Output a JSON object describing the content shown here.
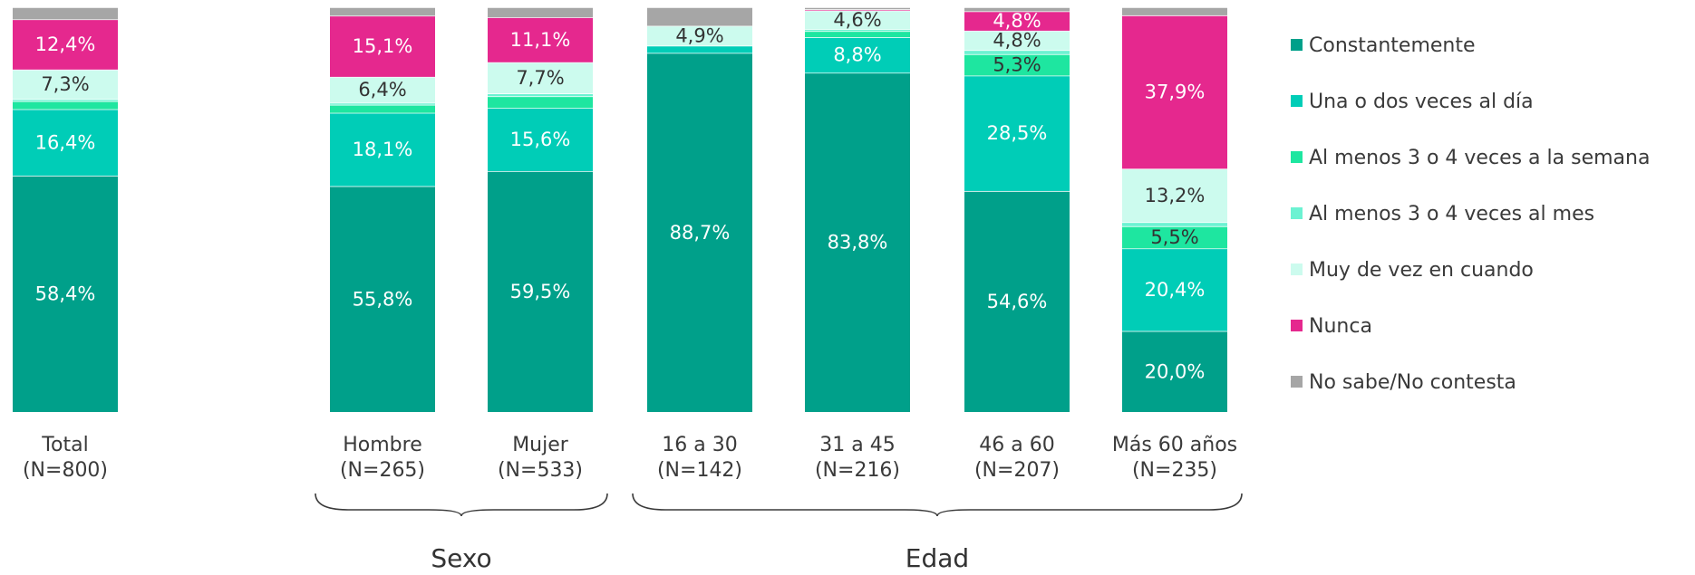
{
  "chart_data": {
    "type": "bar",
    "stacked": true,
    "percent": true,
    "ylim": [
      0,
      100
    ],
    "grid": false,
    "legend_position": "right",
    "categories": [
      {
        "name": "Total",
        "n": "(N=800)"
      },
      {
        "name": "Hombre",
        "n": "(N=265)"
      },
      {
        "name": "Mujer",
        "n": "(N=533)"
      },
      {
        "name": "16 a 30",
        "n": "(N=142)"
      },
      {
        "name": "31 a 45",
        "n": "(N=216)"
      },
      {
        "name": "46 a 60",
        "n": "(N=207)"
      },
      {
        "name": "Más 60 años",
        "n": "(N=235)"
      }
    ],
    "groups": [
      {
        "label": "Sexo",
        "from": 1,
        "to": 2
      },
      {
        "label": "Edad",
        "from": 3,
        "to": 6
      }
    ],
    "series": [
      {
        "name": "Constantemente",
        "color": "#00a08a",
        "values": [
          58.4,
          55.8,
          59.5,
          88.7,
          83.8,
          54.6,
          20.0
        ],
        "labels": [
          "58,4%",
          "55,8%",
          "59,5%",
          "88,7%",
          "83,8%",
          "54,6%",
          "20,0%"
        ]
      },
      {
        "name": "Una o dos veces al día",
        "color": "#00cdb7",
        "values": [
          16.4,
          18.1,
          15.6,
          1.8,
          8.8,
          28.5,
          20.4
        ],
        "labels": [
          "16,4%",
          "18,1%",
          "15,6%",
          "",
          "8,8%",
          "28,5%",
          "20,4%"
        ]
      },
      {
        "name": "Al menos 3 o 4 veces a la semana",
        "color": "#1ee6a0",
        "values": [
          2.0,
          2.0,
          2.9,
          0.0,
          1.5,
          5.3,
          5.5
        ],
        "labels": [
          "",
          "",
          "",
          "",
          "",
          "5,3%",
          "5,5%"
        ]
      },
      {
        "name": "Al menos 3 o 4 veces al mes",
        "color": "#6cf2d2",
        "values": [
          0.5,
          0.5,
          0.7,
          0.0,
          0.5,
          1.0,
          1.0
        ],
        "labels": [
          "",
          "",
          "",
          "",
          "",
          "",
          ""
        ]
      },
      {
        "name": "Muy de vez en cuando",
        "color": "#ccfbee",
        "values": [
          7.3,
          6.4,
          7.7,
          4.9,
          4.6,
          4.8,
          13.2
        ],
        "labels": [
          "7,3%",
          "6,4%",
          "7,7%",
          "4,9%",
          "4,6%",
          "4,8%",
          "13,2%"
        ]
      },
      {
        "name": "Nunca",
        "color": "#e5288e",
        "values": [
          12.4,
          15.1,
          11.1,
          0.0,
          0.3,
          4.8,
          37.9
        ],
        "labels": [
          "12,4%",
          "15,1%",
          "11,1%",
          "",
          "",
          "4,8%",
          "37,9%"
        ]
      },
      {
        "name": "No sabe/No contesta",
        "color": "#a6a6a6",
        "values": [
          3.0,
          2.1,
          2.5,
          4.6,
          0.5,
          1.0,
          2.0
        ],
        "labels": [
          "",
          "",
          "",
          "",
          "",
          "",
          ""
        ]
      }
    ]
  }
}
